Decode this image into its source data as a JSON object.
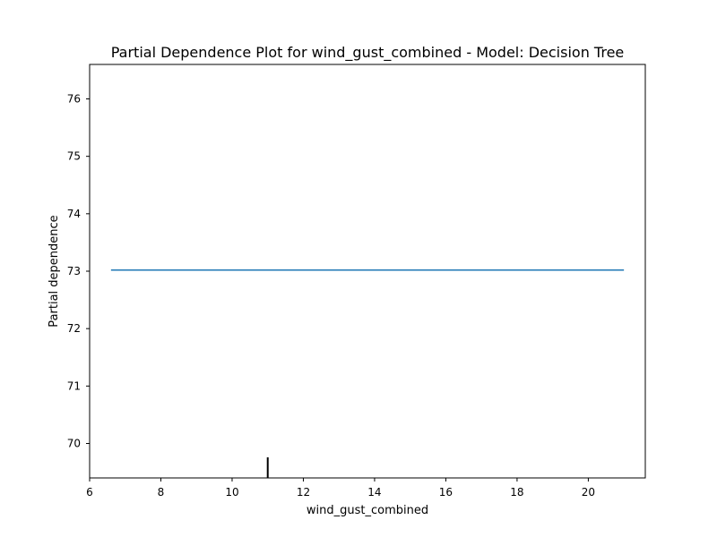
{
  "chart_data": {
    "type": "line",
    "title": "Partial Dependence Plot for wind_gust_combined - Model: Decision Tree",
    "xlabel": "wind_gust_combined",
    "ylabel": "Partial dependence",
    "xlim": [
      6.0,
      21.6
    ],
    "ylim": [
      69.4,
      76.6
    ],
    "x_ticks": [
      6,
      8,
      10,
      12,
      14,
      16,
      18,
      20
    ],
    "y_ticks": [
      70,
      71,
      72,
      73,
      74,
      75,
      76
    ],
    "grid": false,
    "series": [
      {
        "x": [
          6.6,
          21.0
        ],
        "y": [
          73.02,
          73.02
        ],
        "color": "#1f77b4"
      }
    ],
    "deciles": [
      11.0
    ],
    "decile_color": "#000000"
  }
}
